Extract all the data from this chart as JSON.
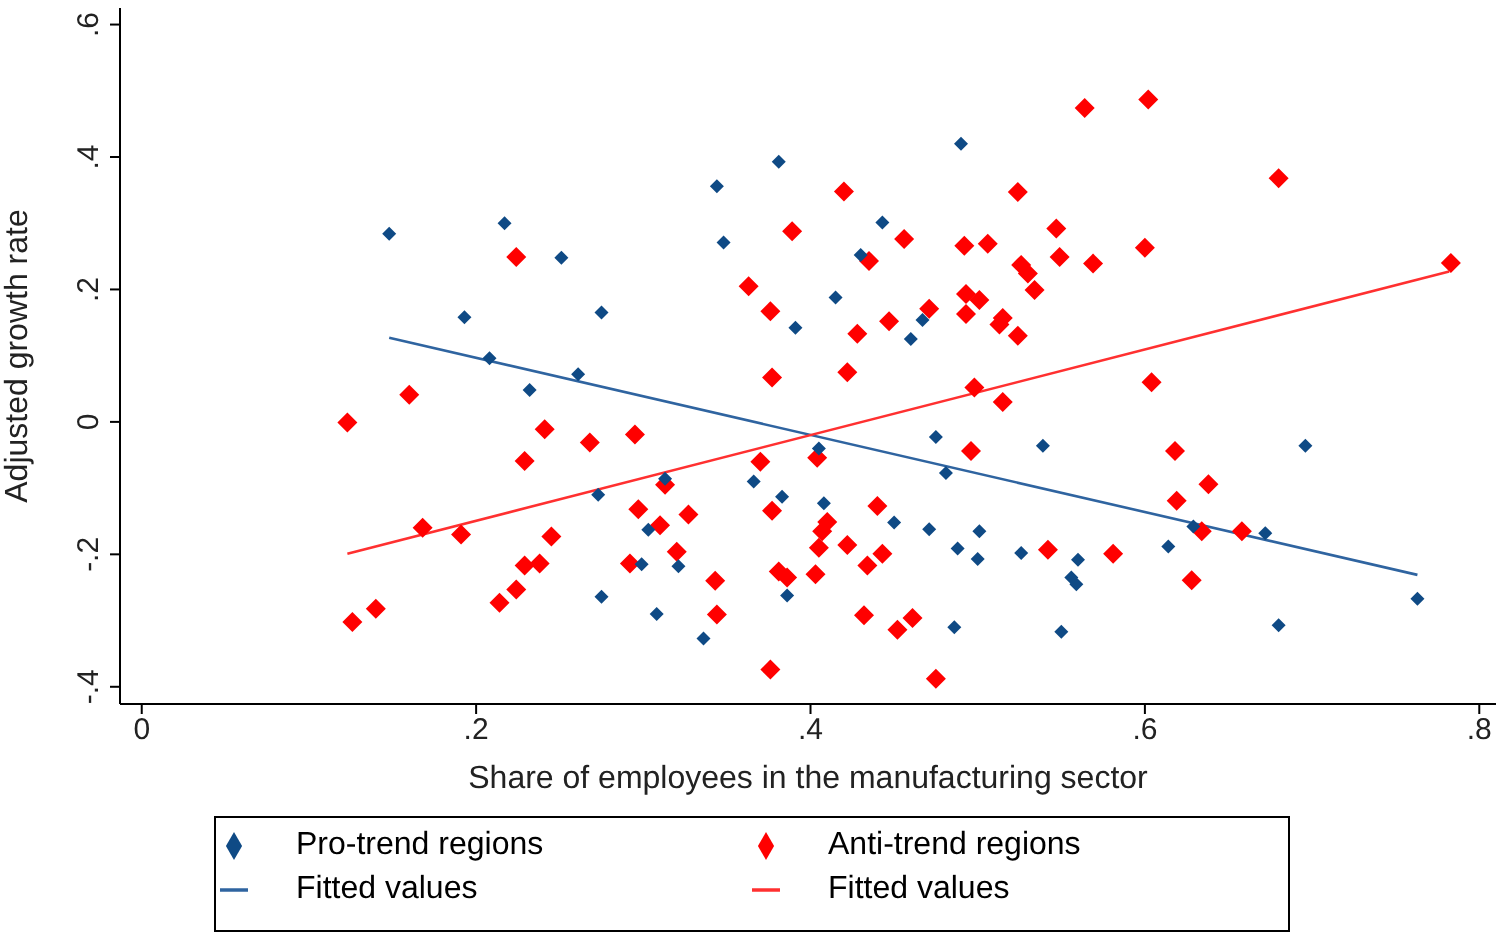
{
  "chart_data": {
    "type": "scatter",
    "xlabel": "Share of employees in the manufacturing sector",
    "ylabel": "Adjusted growth rate",
    "xlim": [
      -0.013,
      0.81
    ],
    "ylim": [
      -0.426,
      0.625
    ],
    "xticks": [
      {
        "value": 0,
        "label": "0"
      },
      {
        "value": 0.2,
        "label": ".2"
      },
      {
        "value": 0.4,
        "label": ".4"
      },
      {
        "value": 0.6,
        "label": ".6"
      },
      {
        "value": 0.8,
        "label": ".8"
      }
    ],
    "yticks": [
      {
        "value": -0.4,
        "label": "-.4"
      },
      {
        "value": -0.2,
        "label": "-.2"
      },
      {
        "value": 0,
        "label": "0"
      },
      {
        "value": 0.2,
        "label": ".2"
      },
      {
        "value": 0.4,
        "label": ".4"
      },
      {
        "value": 0.6,
        "label": ".6"
      }
    ],
    "grid": false,
    "legend": "bottom",
    "series": [
      {
        "name": "Pro-trend regions",
        "marker": "diamond",
        "color": "#0f4a85",
        "x": [
          0.148,
          0.217,
          0.251,
          0.193,
          0.275,
          0.208,
          0.261,
          0.232,
          0.273,
          0.275,
          0.49,
          0.381,
          0.344,
          0.348,
          0.443,
          0.43,
          0.415,
          0.391,
          0.467,
          0.46,
          0.475,
          0.405,
          0.481,
          0.366,
          0.313,
          0.383,
          0.408,
          0.45,
          0.303,
          0.471,
          0.501,
          0.488,
          0.5,
          0.299,
          0.321,
          0.386,
          0.308,
          0.336,
          0.486,
          0.539,
          0.696,
          0.526,
          0.56,
          0.556,
          0.559,
          0.614,
          0.629,
          0.672,
          0.55,
          0.68,
          0.763
        ],
        "values": [
          0.284,
          0.3,
          0.248,
          0.158,
          0.165,
          0.096,
          0.072,
          0.048,
          -0.11,
          -0.264,
          0.42,
          0.393,
          0.356,
          0.271,
          0.301,
          0.252,
          0.188,
          0.142,
          0.154,
          0.125,
          -0.023,
          -0.04,
          -0.077,
          -0.09,
          -0.086,
          -0.113,
          -0.123,
          -0.152,
          -0.163,
          -0.162,
          -0.165,
          -0.191,
          -0.207,
          -0.215,
          -0.218,
          -0.262,
          -0.29,
          -0.327,
          -0.31,
          -0.036,
          -0.036,
          -0.198,
          -0.208,
          -0.235,
          -0.245,
          -0.188,
          -0.158,
          -0.168,
          -0.317,
          -0.307,
          -0.267
        ]
      },
      {
        "name": "Anti-trend regions",
        "marker": "diamond",
        "color": "#ff0000",
        "x": [
          0.224,
          0.16,
          0.123,
          0.241,
          0.229,
          0.268,
          0.168,
          0.191,
          0.245,
          0.229,
          0.238,
          0.224,
          0.214,
          0.14,
          0.126,
          0.42,
          0.389,
          0.456,
          0.492,
          0.506,
          0.435,
          0.363,
          0.376,
          0.493,
          0.501,
          0.493,
          0.447,
          0.471,
          0.428,
          0.377,
          0.422,
          0.498,
          0.295,
          0.496,
          0.37,
          0.404,
          0.313,
          0.297,
          0.327,
          0.377,
          0.31,
          0.41,
          0.44,
          0.407,
          0.32,
          0.405,
          0.422,
          0.443,
          0.434,
          0.292,
          0.381,
          0.386,
          0.403,
          0.343,
          0.344,
          0.432,
          0.452,
          0.461,
          0.376,
          0.475,
          0.602,
          0.564,
          0.68,
          0.524,
          0.547,
          0.549,
          0.6,
          0.569,
          0.783,
          0.526,
          0.53,
          0.534,
          0.515,
          0.513,
          0.524,
          0.604,
          0.515,
          0.618,
          0.638,
          0.619,
          0.634,
          0.658,
          0.542,
          0.581,
          0.628
        ],
        "values": [
          0.249,
          0.041,
          -0.001,
          -0.011,
          -0.059,
          -0.031,
          -0.16,
          -0.17,
          -0.173,
          -0.217,
          -0.214,
          -0.253,
          -0.273,
          -0.282,
          -0.302,
          0.348,
          0.288,
          0.276,
          0.266,
          0.269,
          0.243,
          0.205,
          0.167,
          0.193,
          0.184,
          0.163,
          0.152,
          0.171,
          0.133,
          0.067,
          0.075,
          0.052,
          -0.019,
          -0.044,
          -0.06,
          -0.054,
          -0.095,
          -0.132,
          -0.14,
          -0.134,
          -0.156,
          -0.151,
          -0.127,
          -0.165,
          -0.196,
          -0.19,
          -0.186,
          -0.199,
          -0.217,
          -0.214,
          -0.226,
          -0.235,
          -0.23,
          -0.24,
          -0.291,
          -0.292,
          -0.314,
          -0.296,
          -0.374,
          -0.388,
          0.487,
          0.474,
          0.368,
          0.347,
          0.292,
          0.249,
          0.263,
          0.239,
          0.24,
          0.237,
          0.224,
          0.199,
          0.157,
          0.147,
          0.13,
          0.06,
          0.03,
          -0.044,
          -0.094,
          -0.119,
          -0.165,
          -0.165,
          -0.193,
          -0.199,
          -0.239
        ]
      },
      {
        "name": "Fitted values",
        "type": "line",
        "marker": "none",
        "color": "#2f64a0",
        "x": [
          0.148,
          0.763
        ],
        "values": [
          0.127,
          -0.231
        ]
      },
      {
        "name": "Fitted values",
        "type": "line",
        "marker": "none",
        "color": "#ff3030",
        "x": [
          0.123,
          0.782
        ],
        "values": [
          -0.199,
          0.227
        ]
      }
    ]
  }
}
